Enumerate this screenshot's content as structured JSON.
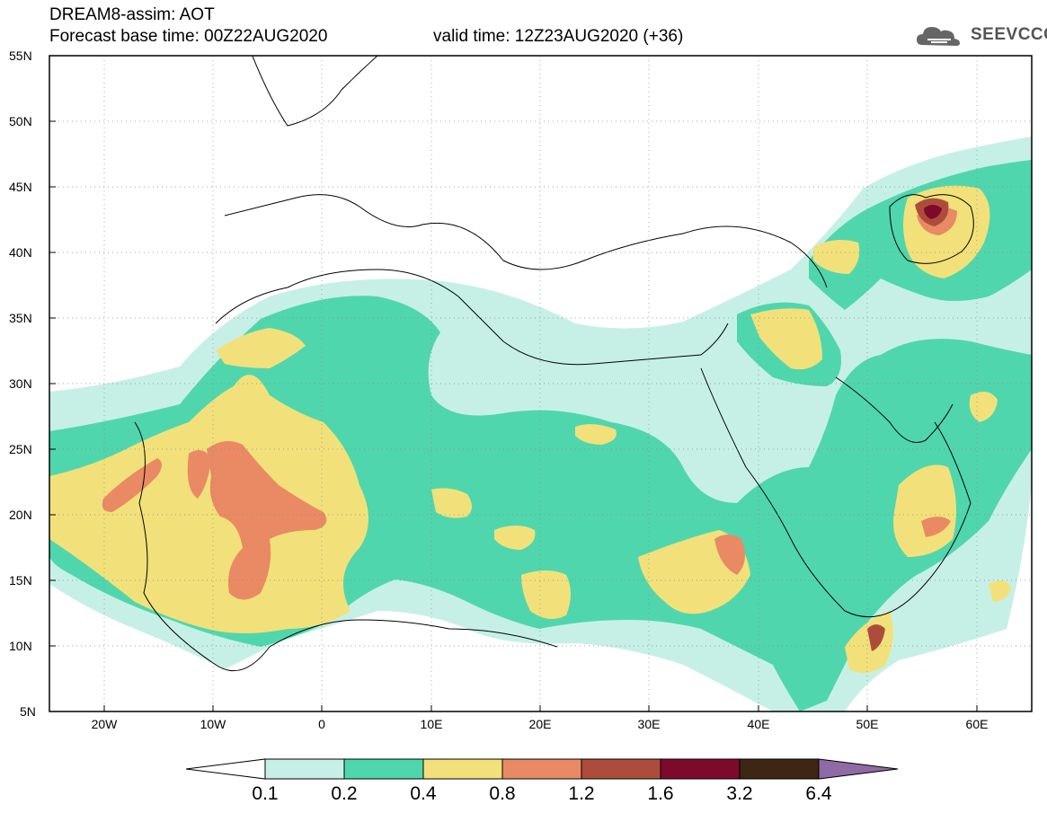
{
  "header": {
    "title_line1": "DREAM8-assim: AOT",
    "title_line2": "Forecast base time: 00Z22AUG2020",
    "valid_time": "valid time: 12Z23AUG2020 (+36)",
    "logo_text": "SEEVCCC",
    "logo_icon": "cloud-icon"
  },
  "axes": {
    "y_labels": [
      "55N",
      "50N",
      "45N",
      "40N",
      "35N",
      "30N",
      "25N",
      "20N",
      "15N",
      "10N",
      "5N"
    ],
    "x_labels": [
      "20W",
      "10W",
      "0",
      "10E",
      "20E",
      "30E",
      "40E",
      "50E",
      "60E"
    ]
  },
  "colorbar": {
    "labels": [
      "0.1",
      "0.2",
      "0.4",
      "0.8",
      "1.2",
      "1.6",
      "3.2",
      "6.4"
    ],
    "colors": [
      "#ffffff",
      "#c6f0e6",
      "#50d6ac",
      "#f2e17a",
      "#e98a64",
      "#ae4c3c",
      "#7d0a2a",
      "#3d2614",
      "#8f6aa6"
    ]
  },
  "colors": {
    "lev1": "#c6f0e6",
    "lev2": "#50d6ac",
    "lev3": "#f2e17a",
    "lev4": "#e98a64",
    "lev5": "#ae4c3c",
    "lev6": "#7d0a2a"
  }
}
